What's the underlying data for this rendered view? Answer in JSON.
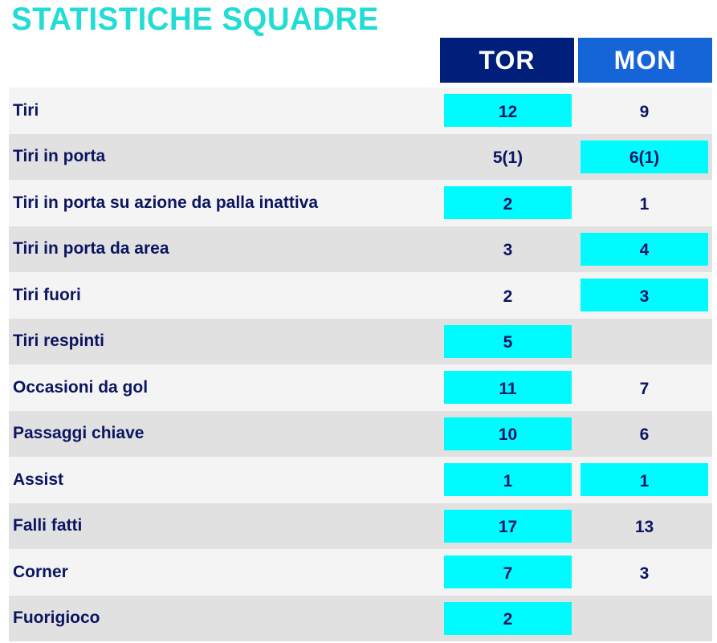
{
  "title": "STATISTICHE SQUADRE",
  "teams": {
    "home": "TOR",
    "away": "MON"
  },
  "colors": {
    "title": "#22dcd6",
    "home_header": "#001f7a",
    "away_header": "#1565d8",
    "highlight": "#00fbff",
    "text": "#0b1560"
  },
  "stats": [
    {
      "label": "Tiri",
      "home": "12",
      "away": "9",
      "leader": "home"
    },
    {
      "label": "Tiri in porta",
      "home": "5(1)",
      "away": "6(1)",
      "leader": "away"
    },
    {
      "label": "Tiri in porta su azione da palla inattiva",
      "home": "2",
      "away": "1",
      "leader": "home"
    },
    {
      "label": "Tiri in porta da area",
      "home": "3",
      "away": "4",
      "leader": "away"
    },
    {
      "label": "Tiri fuori",
      "home": "2",
      "away": "3",
      "leader": "away"
    },
    {
      "label": "Tiri respinti",
      "home": "5",
      "away": "",
      "leader": "home"
    },
    {
      "label": "Occasioni da gol",
      "home": "11",
      "away": "7",
      "leader": "home"
    },
    {
      "label": "Passaggi chiave",
      "home": "10",
      "away": "6",
      "leader": "home"
    },
    {
      "label": "Assist",
      "home": "1",
      "away": "1",
      "leader": "both"
    },
    {
      "label": "Falli fatti",
      "home": "17",
      "away": "13",
      "leader": "home"
    },
    {
      "label": "Corner",
      "home": "7",
      "away": "3",
      "leader": "home"
    },
    {
      "label": "Fuorigioco",
      "home": "2",
      "away": "",
      "leader": "home"
    }
  ]
}
